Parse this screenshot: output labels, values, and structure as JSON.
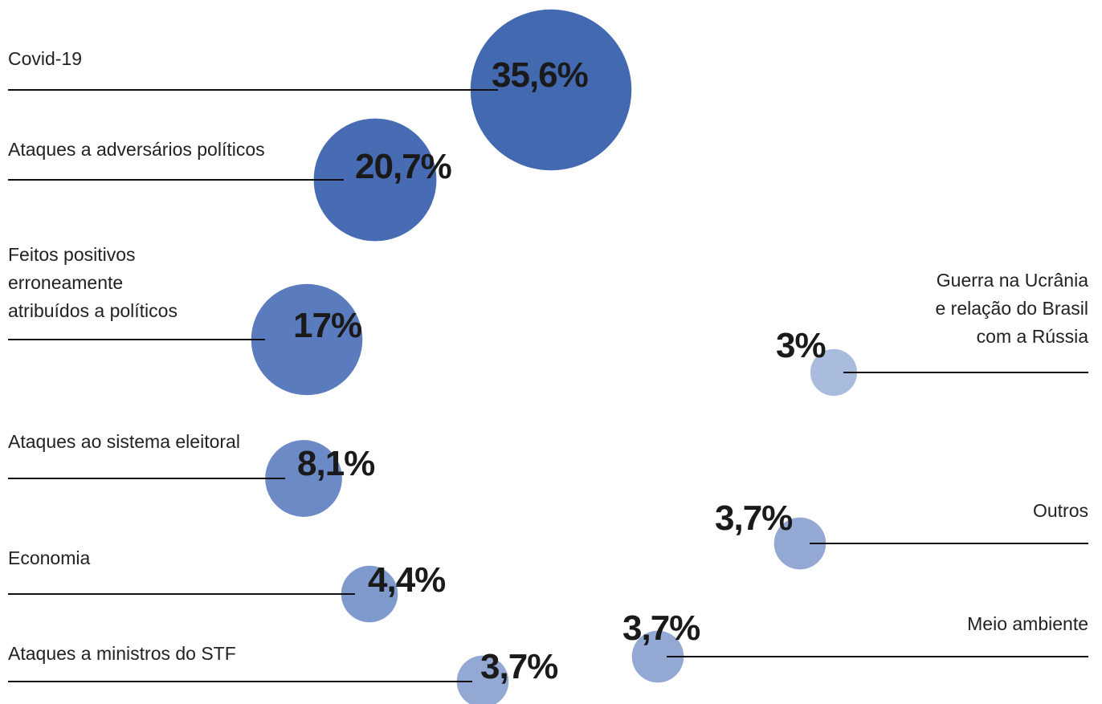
{
  "chart_data": {
    "type": "bubble",
    "categories": [
      "Covid-19",
      "Ataques a adversários políticos",
      "Feitos positivos\nerroneamente\natribuídos a políticos",
      "Ataques ao sistema eleitoral",
      "Economia",
      "Ataques a ministros do STF",
      "Guerra na Ucrânia\ne relação do Brasil\ncom a Rússia",
      "Outros",
      "Meio ambiente"
    ],
    "values": [
      35.6,
      20.7,
      17,
      8.1,
      4.4,
      3.7,
      3,
      3.7,
      3.7
    ],
    "value_labels": [
      "35,6%",
      "20,7%",
      "17%",
      "8,1%",
      "4,4%",
      "3,7%",
      "3%",
      "3,7%",
      "3,7%"
    ],
    "colors": [
      "#4369b1",
      "#476cb3",
      "#5a7bbd",
      "#6c8ac5",
      "#7f9acc",
      "#93a8d3",
      "#aabcdd",
      "#93a8d3",
      "#93a8d3"
    ]
  }
}
